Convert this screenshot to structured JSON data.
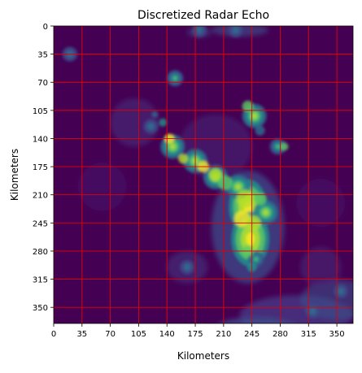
{
  "chart_data": {
    "type": "heatmap",
    "title": "Discretized Radar Echo",
    "xlabel": "Kilometers",
    "ylabel": "Kilometers",
    "xlim": [
      0,
      370
    ],
    "ylim": [
      0,
      370
    ],
    "y_inverted": true,
    "x_ticks": [
      "0",
      "35",
      "70",
      "105",
      "140",
      "175",
      "210",
      "245",
      "280",
      "315",
      "350"
    ],
    "y_ticks": [
      "0",
      "35",
      "70",
      "105",
      "140",
      "175",
      "210",
      "245",
      "280",
      "315",
      "350"
    ],
    "grid": true,
    "grid_color": "#e60000",
    "grid_spacing_km": 35,
    "colormap": "viridis",
    "background_color": "#440154",
    "echo_regions": [
      {
        "center_km": [
          240,
          225
        ],
        "intensity": "very high"
      },
      {
        "center_km": [
          243,
          265
        ],
        "intensity": "very high"
      },
      {
        "center_km": [
          228,
          200
        ],
        "intensity": "high"
      },
      {
        "center_km": [
          147,
          150
        ],
        "intensity": "high"
      },
      {
        "center_km": [
          175,
          168
        ],
        "intensity": "high"
      },
      {
        "center_km": [
          200,
          188
        ],
        "intensity": "high"
      },
      {
        "center_km": [
          248,
          112
        ],
        "intensity": "high"
      },
      {
        "center_km": [
          277,
          150
        ],
        "intensity": "medium"
      },
      {
        "center_km": [
          250,
          290
        ],
        "intensity": "medium"
      },
      {
        "center_km": [
          262,
          232
        ],
        "intensity": "high"
      },
      {
        "center_km": [
          150,
          65
        ],
        "intensity": "medium"
      },
      {
        "center_km": [
          120,
          125
        ],
        "intensity": "low"
      },
      {
        "center_km": [
          165,
          300
        ],
        "intensity": "low"
      },
      {
        "center_km": [
          320,
          355
        ],
        "intensity": "low"
      },
      {
        "center_km": [
          240,
          375
        ],
        "intensity": "low"
      },
      {
        "center_km": [
          355,
          330
        ],
        "intensity": "low"
      },
      {
        "center_km": [
          180,
          5
        ],
        "intensity": "low"
      },
      {
        "center_km": [
          225,
          5
        ],
        "intensity": "low"
      },
      {
        "center_km": [
          20,
          35
        ],
        "intensity": "low"
      }
    ]
  }
}
